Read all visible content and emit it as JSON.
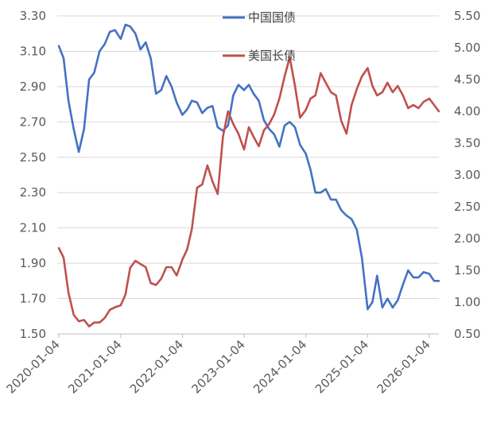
{
  "chart_data": {
    "type": "line",
    "title": "",
    "xlabel": "",
    "ylabel_left": "",
    "ylabel_right": "",
    "x_ticks": [
      "2020-01-04",
      "2021-01-04",
      "2022-01-04",
      "2023-01-04",
      "2024-01-04",
      "2025-01-04",
      "2026-01-04"
    ],
    "ylim_left": [
      1.5,
      3.3
    ],
    "ylim_right": [
      0.5,
      5.5
    ],
    "y_ticks_left": [
      "1.50",
      "1.70",
      "1.90",
      "2.10",
      "2.30",
      "2.50",
      "2.70",
      "2.90",
      "3.10",
      "3.30"
    ],
    "y_ticks_right": [
      "0.50",
      "1.00",
      "1.50",
      "2.00",
      "2.50",
      "3.00",
      "3.50",
      "4.00",
      "4.50",
      "5.00",
      "5.50"
    ],
    "grid": true,
    "legend_position": "top-center",
    "series": [
      {
        "name": "中国国债",
        "axis": "left",
        "color": "#4472c4",
        "points": [
          [
            "2020-01-04",
            3.13
          ],
          [
            "2020-02-01",
            3.06
          ],
          [
            "2020-03-01",
            2.82
          ],
          [
            "2020-04-01",
            2.66
          ],
          [
            "2020-05-01",
            2.53
          ],
          [
            "2020-06-01",
            2.66
          ],
          [
            "2020-07-01",
            2.94
          ],
          [
            "2020-08-01",
            2.98
          ],
          [
            "2020-09-01",
            3.1
          ],
          [
            "2020-10-01",
            3.14
          ],
          [
            "2020-11-01",
            3.21
          ],
          [
            "2020-12-01",
            3.22
          ],
          [
            "2021-01-04",
            3.17
          ],
          [
            "2021-02-01",
            3.25
          ],
          [
            "2021-03-01",
            3.24
          ],
          [
            "2021-04-01",
            3.2
          ],
          [
            "2021-05-01",
            3.11
          ],
          [
            "2021-06-01",
            3.15
          ],
          [
            "2021-07-01",
            3.06
          ],
          [
            "2021-08-01",
            2.86
          ],
          [
            "2021-09-01",
            2.88
          ],
          [
            "2021-10-01",
            2.96
          ],
          [
            "2021-11-01",
            2.9
          ],
          [
            "2021-12-01",
            2.81
          ],
          [
            "2022-01-04",
            2.74
          ],
          [
            "2022-02-01",
            2.77
          ],
          [
            "2022-03-01",
            2.82
          ],
          [
            "2022-04-01",
            2.81
          ],
          [
            "2022-05-01",
            2.75
          ],
          [
            "2022-06-01",
            2.78
          ],
          [
            "2022-07-01",
            2.79
          ],
          [
            "2022-08-01",
            2.67
          ],
          [
            "2022-09-01",
            2.65
          ],
          [
            "2022-10-01",
            2.68
          ],
          [
            "2022-11-01",
            2.85
          ],
          [
            "2022-12-01",
            2.91
          ],
          [
            "2023-01-04",
            2.88
          ],
          [
            "2023-02-01",
            2.91
          ],
          [
            "2023-03-01",
            2.86
          ],
          [
            "2023-04-01",
            2.82
          ],
          [
            "2023-05-01",
            2.71
          ],
          [
            "2023-06-01",
            2.66
          ],
          [
            "2023-07-01",
            2.63
          ],
          [
            "2023-08-01",
            2.56
          ],
          [
            "2023-09-01",
            2.68
          ],
          [
            "2023-10-01",
            2.7
          ],
          [
            "2023-11-01",
            2.67
          ],
          [
            "2023-12-01",
            2.57
          ],
          [
            "2024-01-04",
            2.52
          ],
          [
            "2024-02-01",
            2.43
          ],
          [
            "2024-03-01",
            2.3
          ],
          [
            "2024-04-01",
            2.3
          ],
          [
            "2024-05-01",
            2.32
          ],
          [
            "2024-06-01",
            2.26
          ],
          [
            "2024-07-01",
            2.26
          ],
          [
            "2024-08-01",
            2.2
          ],
          [
            "2024-09-01",
            2.17
          ],
          [
            "2024-10-01",
            2.15
          ],
          [
            "2024-11-01",
            2.09
          ],
          [
            "2024-12-01",
            1.93
          ],
          [
            "2025-01-04",
            1.64
          ],
          [
            "2025-02-01",
            1.68
          ],
          [
            "2025-03-01",
            1.83
          ],
          [
            "2025-04-01",
            1.65
          ],
          [
            "2025-05-01",
            1.7
          ],
          [
            "2025-06-01",
            1.65
          ],
          [
            "2025-07-01",
            1.69
          ],
          [
            "2025-08-01",
            1.78
          ],
          [
            "2025-09-01",
            1.86
          ],
          [
            "2025-10-01",
            1.82
          ],
          [
            "2025-11-01",
            1.82
          ],
          [
            "2025-12-01",
            1.85
          ],
          [
            "2026-01-04",
            1.84
          ],
          [
            "2026-02-01",
            1.8
          ],
          [
            "2026-03-01",
            1.8
          ]
        ]
      },
      {
        "name": "美国长债",
        "axis": "right",
        "color": "#c0504d",
        "points": [
          [
            "2020-01-04",
            1.85
          ],
          [
            "2020-02-01",
            1.7
          ],
          [
            "2020-03-01",
            1.15
          ],
          [
            "2020-04-01",
            0.8
          ],
          [
            "2020-05-01",
            0.7
          ],
          [
            "2020-06-01",
            0.72
          ],
          [
            "2020-07-01",
            0.62
          ],
          [
            "2020-08-01",
            0.68
          ],
          [
            "2020-09-01",
            0.68
          ],
          [
            "2020-10-01",
            0.75
          ],
          [
            "2020-11-01",
            0.88
          ],
          [
            "2020-12-01",
            0.92
          ],
          [
            "2021-01-04",
            0.95
          ],
          [
            "2021-02-01",
            1.12
          ],
          [
            "2021-03-01",
            1.54
          ],
          [
            "2021-04-01",
            1.65
          ],
          [
            "2021-05-01",
            1.6
          ],
          [
            "2021-06-01",
            1.55
          ],
          [
            "2021-07-01",
            1.3
          ],
          [
            "2021-08-01",
            1.27
          ],
          [
            "2021-09-01",
            1.37
          ],
          [
            "2021-10-01",
            1.55
          ],
          [
            "2021-11-01",
            1.55
          ],
          [
            "2021-12-01",
            1.42
          ],
          [
            "2022-01-04",
            1.67
          ],
          [
            "2022-02-01",
            1.83
          ],
          [
            "2022-03-01",
            2.15
          ],
          [
            "2022-04-01",
            2.8
          ],
          [
            "2022-05-01",
            2.85
          ],
          [
            "2022-06-01",
            3.15
          ],
          [
            "2022-07-01",
            2.9
          ],
          [
            "2022-08-01",
            2.7
          ],
          [
            "2022-09-01",
            3.6
          ],
          [
            "2022-10-01",
            4.0
          ],
          [
            "2022-11-01",
            3.8
          ],
          [
            "2022-12-01",
            3.65
          ],
          [
            "2023-01-04",
            3.4
          ],
          [
            "2023-02-01",
            3.75
          ],
          [
            "2023-03-01",
            3.6
          ],
          [
            "2023-04-01",
            3.45
          ],
          [
            "2023-05-01",
            3.7
          ],
          [
            "2023-06-01",
            3.8
          ],
          [
            "2023-07-01",
            3.95
          ],
          [
            "2023-08-01",
            4.2
          ],
          [
            "2023-09-01",
            4.55
          ],
          [
            "2023-10-01",
            4.85
          ],
          [
            "2023-11-01",
            4.4
          ],
          [
            "2023-12-01",
            3.9
          ],
          [
            "2024-01-04",
            4.02
          ],
          [
            "2024-02-01",
            4.2
          ],
          [
            "2024-03-01",
            4.25
          ],
          [
            "2024-04-01",
            4.6
          ],
          [
            "2024-05-01",
            4.45
          ],
          [
            "2024-06-01",
            4.3
          ],
          [
            "2024-07-01",
            4.25
          ],
          [
            "2024-08-01",
            3.85
          ],
          [
            "2024-09-01",
            3.65
          ],
          [
            "2024-10-01",
            4.1
          ],
          [
            "2024-11-01",
            4.35
          ],
          [
            "2024-12-01",
            4.55
          ],
          [
            "2025-01-04",
            4.68
          ],
          [
            "2025-02-01",
            4.4
          ],
          [
            "2025-03-01",
            4.25
          ],
          [
            "2025-04-01",
            4.3
          ],
          [
            "2025-05-01",
            4.45
          ],
          [
            "2025-06-01",
            4.3
          ],
          [
            "2025-07-01",
            4.4
          ],
          [
            "2025-08-01",
            4.25
          ],
          [
            "2025-09-01",
            4.05
          ],
          [
            "2025-10-01",
            4.1
          ],
          [
            "2025-11-01",
            4.05
          ],
          [
            "2025-12-01",
            4.15
          ],
          [
            "2026-01-04",
            4.2
          ],
          [
            "2026-02-01",
            4.1
          ],
          [
            "2026-03-01",
            4.0
          ]
        ]
      }
    ]
  }
}
